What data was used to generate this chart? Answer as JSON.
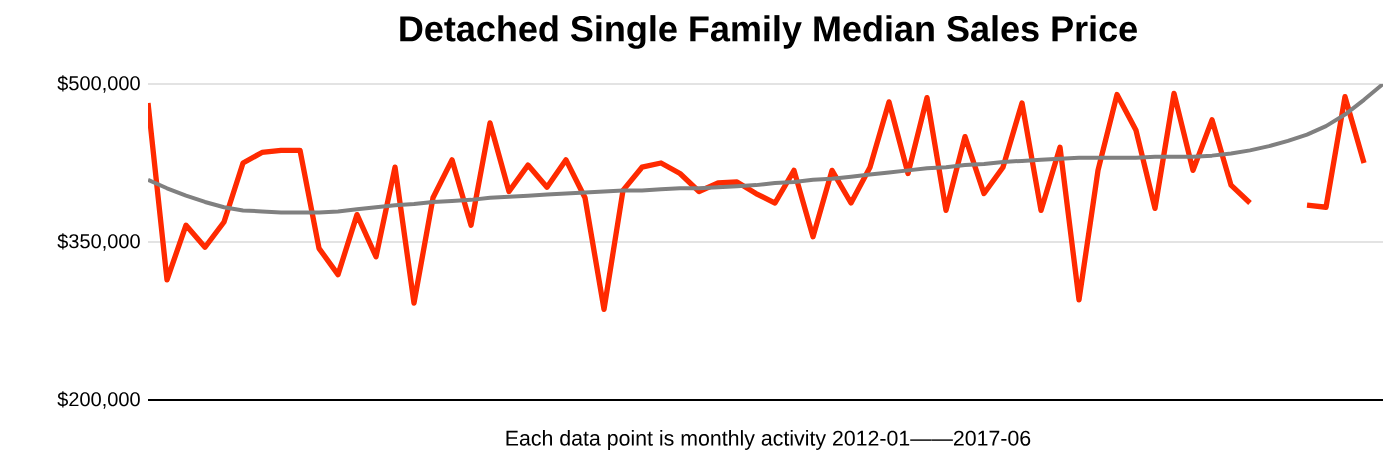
{
  "chart_data": {
    "type": "line",
    "title": "Detached Single Family Median Sales Price",
    "xlabel": "Each data point is monthly activity 2012-01——2017-06",
    "categories": [
      null,
      null,
      null,
      null,
      null,
      null,
      null,
      null,
      null,
      null,
      null,
      null,
      null,
      null,
      null,
      null,
      null,
      null,
      null,
      null,
      null,
      null,
      null,
      null,
      null,
      null,
      null,
      null,
      null,
      null,
      null,
      null,
      null,
      null,
      null,
      null,
      null,
      null,
      null,
      null,
      null,
      null,
      null,
      null,
      null,
      null,
      null,
      null,
      null,
      null,
      null,
      null,
      null,
      null,
      null,
      null,
      null,
      null,
      null,
      null,
      null,
      null,
      null,
      null,
      null,
      null
    ],
    "series": [
      {
        "color": "#ff2a00",
        "values": [
          482000,
          314000,
          366000,
          345000,
          369000,
          425000,
          435000,
          437000,
          437000,
          344000,
          319000,
          376000,
          336000,
          421000,
          292000,
          392000,
          428000,
          366000,
          463000,
          398000,
          423000,
          402000,
          428000,
          392000,
          286000,
          399000,
          421000,
          425000,
          415000,
          398000,
          406000,
          407000,
          396000,
          387000,
          418000,
          355000,
          418000,
          387000,
          421000,
          483000,
          415000,
          487000,
          380000,
          450000,
          396000,
          421000,
          482000,
          380000,
          440000,
          295000,
          418000,
          490000,
          456000,
          382000,
          491000,
          418000,
          466000,
          404000,
          387000,
          null,
          null,
          385000,
          383000,
          488000,
          425000,
          null
        ]
      },
      {
        "type": "line",
        "color": "#808080",
        "values": [
          409000,
          401000,
          394000,
          388000,
          383000,
          380000,
          379000,
          378000,
          378000,
          378000,
          379000,
          381000,
          383000,
          385000,
          386000,
          388000,
          389000,
          390000,
          392000,
          393000,
          394000,
          395000,
          396000,
          397000,
          398000,
          399000,
          399000,
          400000,
          401000,
          401000,
          402000,
          403000,
          404000,
          406000,
          407000,
          409000,
          410000,
          412000,
          414000,
          416000,
          418000,
          420000,
          421000,
          423000,
          424000,
          426000,
          427000,
          428000,
          429000,
          430000,
          430000,
          430000,
          430000,
          431000,
          431000,
          431000,
          432000,
          434000,
          437000,
          441000,
          446000,
          452000,
          460000,
          471000,
          485000,
          500000
        ]
      }
    ],
    "ylim": [
      200000,
      500000
    ],
    "yticks": [
      {
        "value": 200000,
        "label": "$200,000"
      },
      {
        "value": 350000,
        "label": "$350,000"
      },
      {
        "value": 500000,
        "label": "$500,000"
      }
    ],
    "tick_labels": "y",
    "grid": "y",
    "legend": false,
    "marker": "none",
    "line_style": "solid"
  }
}
